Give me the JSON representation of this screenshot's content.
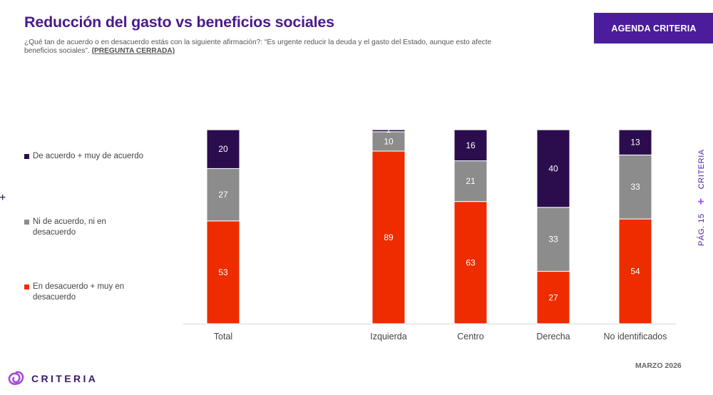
{
  "header": {
    "title": "Reducción del gasto vs beneficios sociales",
    "subtitle": "¿Qué tan de acuerdo o en desacuerdo estás con la siguiente afirmación?: “Es urgente reducir la deuda y el gasto del Estado, aunque esto afecte beneficios sociales”.",
    "subtitle_tag": "(PREGUNTA CERRADA)",
    "button_label": "AGENDA CRITERIA"
  },
  "side": {
    "brand": "CRITERIA",
    "page": "PÁG. 15"
  },
  "footer": {
    "date": "MARZO 2026",
    "logo_text": "CRITERIA"
  },
  "colors": {
    "agree": "#2b0d4e",
    "neutral": "#8c8c8c",
    "disagree": "#ef2b00",
    "accent": "#4b1d9c"
  },
  "chart_data": {
    "type": "bar",
    "stacked": true,
    "categories": [
      "Total",
      "Izquierda",
      "Centro",
      "Derecha",
      "No identificados"
    ],
    "series": [
      {
        "name": "En desacuerdo + muy en desacuerdo",
        "values": [
          53,
          89,
          63,
          27,
          54
        ]
      },
      {
        "name": "Ni de acuerdo, ni en desacuerdo",
        "values": [
          27,
          10,
          21,
          33,
          33
        ]
      },
      {
        "name": "De acuerdo + muy de acuerdo",
        "values": [
          20,
          1,
          16,
          40,
          13
        ]
      }
    ],
    "ylim": [
      0,
      100
    ],
    "legend": [
      {
        "label": "De acuerdo + muy de acuerdo",
        "color_key": "agree"
      },
      {
        "label": "Ni de acuerdo, ni en desacuerdo",
        "color_key": "neutral"
      },
      {
        "label": "En desacuerdo + muy en desacuerdo",
        "color_key": "disagree"
      }
    ]
  }
}
